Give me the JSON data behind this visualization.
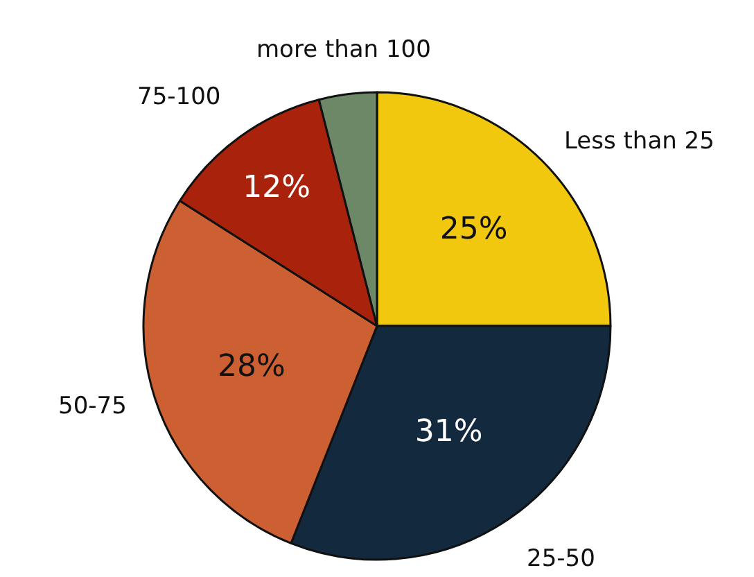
{
  "chart_data": {
    "type": "pie",
    "categories": [
      "Less than 25",
      "25-50",
      "50-75",
      "75-100",
      "more than 100"
    ],
    "values": [
      25,
      31,
      28,
      12,
      4
    ],
    "colors": [
      "#f2c80f",
      "#13293d",
      "#cd6033",
      "#a9220c",
      "#6c8866"
    ],
    "value_labels": [
      "25%",
      "31%",
      "28%",
      "12%",
      null
    ]
  }
}
